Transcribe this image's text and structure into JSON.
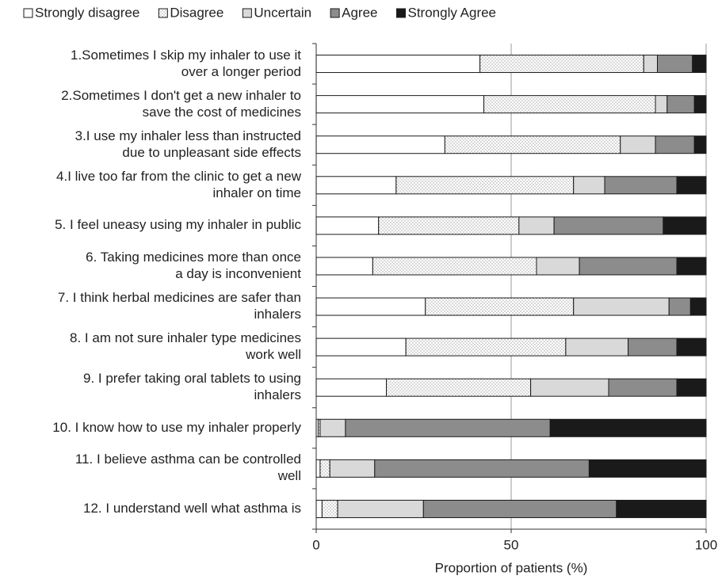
{
  "chart_data": {
    "type": "stacked-bar-horizontal",
    "xlabel": "Proportion of patients (%)",
    "categories": [
      "1.Sometimes I skip my inhaler to use it\nover a longer period",
      "2.Sometimes I don't get a new inhaler to\nsave the cost of medicines",
      "3.I use my inhaler less than instructed\ndue to unpleasant side effects",
      "4.I live too far from the clinic to get a new\ninhaler on time",
      "5. I feel uneasy using my inhaler in public",
      "6. Taking medicines more than once\na day is inconvenient",
      "7. I think herbal medicines are safer than\ninhalers",
      "8. I am not sure inhaler type medicines\nwork well",
      "9. I prefer taking oral tablets to using\ninhalers",
      "10. I know how to use my inhaler properly",
      "11. I believe asthma can be controlled\nwell",
      "12. I understand well what asthma is"
    ],
    "series": [
      {
        "name": "Strongly disagree",
        "color": "#ffffff",
        "values": [
          42,
          43,
          33,
          20.5,
          16,
          14.5,
          28,
          23,
          18,
          0.5,
          1,
          1.5
        ]
      },
      {
        "name": "Disagree",
        "color": "dotted",
        "values": [
          42,
          44,
          45,
          45.5,
          36,
          42,
          38,
          41,
          37,
          0.5,
          2.5,
          4
        ]
      },
      {
        "name": "Uncertain",
        "color": "#d9d9d9",
        "values": [
          3.5,
          3,
          9,
          8,
          9,
          11,
          24.5,
          16,
          20,
          6.5,
          11.5,
          22
        ]
      },
      {
        "name": "Agree",
        "color": "#8c8c8c",
        "values": [
          9,
          7,
          10,
          18.5,
          28,
          25,
          5.5,
          12.5,
          17.5,
          52.5,
          55,
          49.5
        ]
      },
      {
        "name": "Strongly Agree",
        "color": "#1a1a1a",
        "values": [
          3.5,
          3,
          3,
          7.5,
          11,
          7.5,
          4,
          7.5,
          7.5,
          40,
          30,
          23
        ]
      }
    ],
    "xlim": [
      0,
      100
    ],
    "xticks": [
      0,
      50,
      100
    ],
    "grid": true,
    "legend": "top"
  }
}
